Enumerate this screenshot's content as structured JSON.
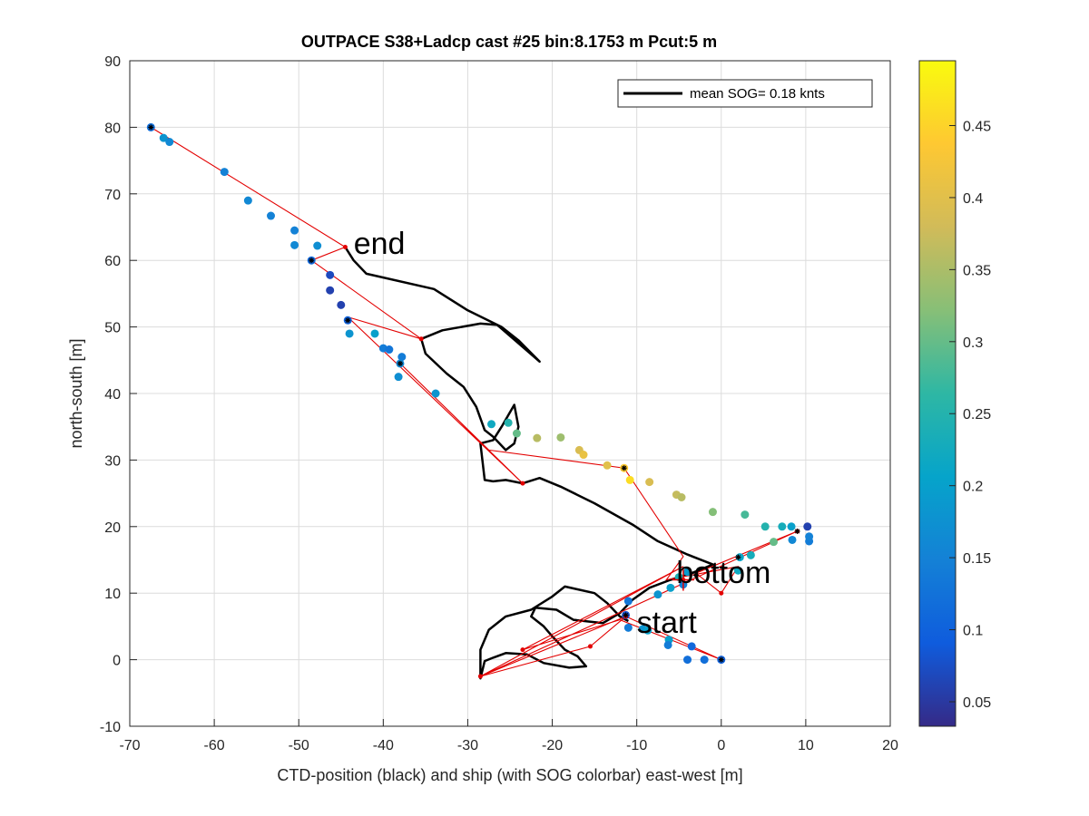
{
  "chart_data": {
    "type": "scatter",
    "title": "OUTPACE S38+Ladcp cast #25 bin:8.1753 m  Pcut:5 m",
    "xlabel": "CTD-position (black) and ship (with SOG colorbar) east-west [m]",
    "ylabel": "north-south [m]",
    "xlim": [
      -70,
      20
    ],
    "ylim": [
      -10,
      90
    ],
    "xticks": [
      -70,
      -60,
      -50,
      -40,
      -30,
      -20,
      -10,
      0,
      10,
      20
    ],
    "yticks": [
      -10,
      0,
      10,
      20,
      30,
      40,
      50,
      60,
      70,
      80,
      90
    ],
    "grid": true,
    "legend": {
      "position": "top-right",
      "entry": "mean SOG=  0.18 knts",
      "color": "#000000"
    },
    "colorbar": {
      "range": [
        0.033,
        0.495
      ],
      "ticks": [
        0.05,
        0.1,
        0.15,
        0.2,
        0.25,
        0.3,
        0.35,
        0.4,
        0.45
      ],
      "colormap": [
        "#352a87",
        "#0f5cdd",
        "#1481d6",
        "#06a4ca",
        "#2eb7a4",
        "#87bf77",
        "#d1bb59",
        "#fec832",
        "#f9fb0e"
      ]
    },
    "annotations": [
      {
        "text": "end",
        "x": -43.5,
        "y": 61
      },
      {
        "text": "bottom",
        "x": -5.3,
        "y": 11.5
      },
      {
        "text": "start",
        "x": -10,
        "y": 4
      }
    ],
    "ctd_path": [
      [
        -44.5,
        62
      ],
      [
        -43.5,
        60
      ],
      [
        -42,
        58
      ],
      [
        -34,
        55.7
      ],
      [
        -30,
        52.5
      ],
      [
        -26,
        50
      ],
      [
        -24,
        48
      ],
      [
        -21.5,
        44.8
      ],
      [
        -26.5,
        50.3
      ],
      [
        -28.5,
        50.5
      ],
      [
        -33,
        49.5
      ],
      [
        -35.5,
        48.2
      ],
      [
        -35,
        46
      ],
      [
        -32.5,
        43
      ],
      [
        -30.5,
        41
      ],
      [
        -29,
        38
      ],
      [
        -28,
        34.5
      ],
      [
        -27,
        33.5
      ],
      [
        -25.5,
        31.5
      ],
      [
        -24.5,
        32.5
      ],
      [
        -24,
        35
      ],
      [
        -24.5,
        38.3
      ],
      [
        -26,
        35
      ],
      [
        -27,
        33
      ],
      [
        -28.5,
        32.5
      ],
      [
        -28,
        27
      ],
      [
        -27,
        26.8
      ],
      [
        -25.5,
        27
      ],
      [
        -23.5,
        26.5
      ],
      [
        -21.5,
        27.3
      ],
      [
        -19,
        26
      ],
      [
        -15,
        23.5
      ],
      [
        -10.5,
        20.3
      ],
      [
        -7.5,
        17.8
      ],
      [
        -4,
        15.8
      ],
      [
        -1,
        14.3
      ],
      [
        -3.5,
        13
      ],
      [
        -6,
        12
      ],
      [
        -8.5,
        10.8
      ],
      [
        -10.5,
        9
      ],
      [
        -12,
        7
      ],
      [
        -14,
        5.5
      ],
      [
        -17.5,
        6
      ],
      [
        -19.5,
        7.5
      ],
      [
        -22,
        7.8
      ],
      [
        -22.5,
        6.5
      ],
      [
        -21,
        5
      ],
      [
        -20,
        3.5
      ],
      [
        -18.5,
        1.5
      ],
      [
        -17,
        0.5
      ],
      [
        -16,
        -1
      ],
      [
        -18,
        -1.2
      ],
      [
        -21,
        -0.5
      ],
      [
        -23,
        0.8
      ],
      [
        -25.5,
        1
      ],
      [
        -27,
        0.3
      ],
      [
        -28,
        -0.2
      ],
      [
        -28.5,
        -2.8
      ],
      [
        -28.5,
        1.5
      ],
      [
        -27.5,
        4.5
      ],
      [
        -25.5,
        6.5
      ],
      [
        -22.5,
        7.5
      ],
      [
        -20,
        9.5
      ],
      [
        -18.5,
        11
      ],
      [
        -15,
        10
      ],
      [
        -13.5,
        8.5
      ],
      [
        -12,
        6.5
      ],
      [
        -11,
        5.8
      ]
    ],
    "ship_points": [
      {
        "x": -67.5,
        "y": 80,
        "sog": 0.12
      },
      {
        "x": -66,
        "y": 78.4,
        "sog": 0.18
      },
      {
        "x": -65.3,
        "y": 77.8,
        "sog": 0.16
      },
      {
        "x": -58.8,
        "y": 73.3,
        "sog": 0.15
      },
      {
        "x": -56,
        "y": 69,
        "sog": 0.16
      },
      {
        "x": -53.3,
        "y": 66.7,
        "sog": 0.15
      },
      {
        "x": -50.5,
        "y": 64.5,
        "sog": 0.15
      },
      {
        "x": -50.5,
        "y": 62.3,
        "sog": 0.16
      },
      {
        "x": -47.8,
        "y": 62.2,
        "sog": 0.17
      },
      {
        "x": -48.5,
        "y": 60,
        "sog": 0.11
      },
      {
        "x": -46.3,
        "y": 57.8,
        "sog": 0.07
      },
      {
        "x": -46.3,
        "y": 55.5,
        "sog": 0.06
      },
      {
        "x": -45,
        "y": 53.3,
        "sog": 0.06
      },
      {
        "x": -44.2,
        "y": 51,
        "sog": 0.1
      },
      {
        "x": -44,
        "y": 49,
        "sog": 0.18
      },
      {
        "x": -41,
        "y": 49,
        "sog": 0.2
      },
      {
        "x": -40,
        "y": 46.8,
        "sog": 0.14
      },
      {
        "x": -39.3,
        "y": 46.6,
        "sog": 0.13
      },
      {
        "x": -37.8,
        "y": 45.5,
        "sog": 0.14
      },
      {
        "x": -38,
        "y": 44.5,
        "sog": 0.16
      },
      {
        "x": -38.2,
        "y": 42.5,
        "sog": 0.17
      },
      {
        "x": -33.8,
        "y": 40,
        "sog": 0.18
      },
      {
        "x": -27.2,
        "y": 35.4,
        "sog": 0.22
      },
      {
        "x": -25.2,
        "y": 35.6,
        "sog": 0.25
      },
      {
        "x": -24.2,
        "y": 34,
        "sog": 0.3
      },
      {
        "x": -21.8,
        "y": 33.3,
        "sog": 0.36
      },
      {
        "x": -19,
        "y": 33.4,
        "sog": 0.34
      },
      {
        "x": -16.8,
        "y": 31.5,
        "sog": 0.39
      },
      {
        "x": -16.3,
        "y": 30.8,
        "sog": 0.41
      },
      {
        "x": -13.5,
        "y": 29.2,
        "sog": 0.4
      },
      {
        "x": -11.5,
        "y": 28.8,
        "sog": 0.44
      },
      {
        "x": -10.8,
        "y": 27,
        "sog": 0.46
      },
      {
        "x": -8.5,
        "y": 26.7,
        "sog": 0.39
      },
      {
        "x": -5.3,
        "y": 24.8,
        "sog": 0.37
      },
      {
        "x": -4.7,
        "y": 24.4,
        "sog": 0.36
      },
      {
        "x": -1,
        "y": 22.2,
        "sog": 0.32
      },
      {
        "x": 2.8,
        "y": 21.8,
        "sog": 0.28
      },
      {
        "x": 6.2,
        "y": 17.7,
        "sog": 0.3
      },
      {
        "x": 5.2,
        "y": 20,
        "sog": 0.25
      },
      {
        "x": 7.2,
        "y": 20,
        "sog": 0.23
      },
      {
        "x": 8.3,
        "y": 20,
        "sog": 0.2
      },
      {
        "x": 8.4,
        "y": 18,
        "sog": 0.16
      },
      {
        "x": 10.2,
        "y": 20,
        "sog": 0.06
      },
      {
        "x": 10.4,
        "y": 17.8,
        "sog": 0.14
      },
      {
        "x": 10.4,
        "y": 18.5,
        "sog": 0.15
      },
      {
        "x": 3.5,
        "y": 15.7,
        "sog": 0.23
      },
      {
        "x": 2.2,
        "y": 15.4,
        "sog": 0.21
      },
      {
        "x": 2,
        "y": 13.4,
        "sog": 0.22
      },
      {
        "x": -4,
        "y": 13.2,
        "sog": 0.19
      },
      {
        "x": -5,
        "y": 12.4,
        "sog": 0.24
      },
      {
        "x": -4.5,
        "y": 11.3,
        "sog": 0.15
      },
      {
        "x": -6,
        "y": 10.8,
        "sog": 0.2
      },
      {
        "x": -7.5,
        "y": 9.8,
        "sog": 0.18
      },
      {
        "x": -11,
        "y": 8.8,
        "sog": 0.13
      },
      {
        "x": -11.3,
        "y": 6.7,
        "sog": 0.08
      },
      {
        "x": -11,
        "y": 4.8,
        "sog": 0.14
      },
      {
        "x": -9.3,
        "y": 4.6,
        "sog": 0.18
      },
      {
        "x": -8.7,
        "y": 4.4,
        "sog": 0.2
      },
      {
        "x": -6.2,
        "y": 3,
        "sog": 0.2
      },
      {
        "x": -6.3,
        "y": 2.2,
        "sog": 0.14
      },
      {
        "x": -3.5,
        "y": 2,
        "sog": 0.11
      },
      {
        "x": -4,
        "y": 0,
        "sog": 0.12
      },
      {
        "x": -2,
        "y": 0,
        "sog": 0.12
      },
      {
        "x": 0,
        "y": 0,
        "sog": 0.1
      }
    ],
    "red_path": [
      [
        -67.5,
        80
      ],
      [
        -44.5,
        62
      ],
      [
        -48.5,
        60
      ],
      [
        -35.5,
        48.2
      ],
      [
        -44.2,
        51.5
      ],
      [
        -23.5,
        26.5
      ],
      [
        -38,
        44.5
      ],
      [
        -27.5,
        31.5
      ],
      [
        -11.5,
        28.8
      ],
      [
        -4.5,
        15.5
      ],
      [
        -6.5,
        12
      ],
      [
        2,
        14
      ],
      [
        0,
        10
      ],
      [
        -3,
        13
      ],
      [
        9,
        19.3
      ],
      [
        -28.5,
        -2.5
      ],
      [
        -11.3,
        6.5
      ],
      [
        -15.5,
        2
      ],
      [
        -28.5,
        -2.5
      ],
      [
        -4.5,
        14
      ],
      [
        -23.5,
        1.5
      ],
      [
        -12,
        6
      ],
      [
        0,
        0
      ],
      [
        -11.3,
        6.5
      ]
    ],
    "red_markers": [
      [
        -44.5,
        62
      ],
      [
        -35.5,
        48.2
      ],
      [
        -23.5,
        26.5
      ],
      [
        -28.5,
        -2.5
      ],
      [
        -15.5,
        2
      ],
      [
        -23.5,
        1.5
      ],
      [
        0,
        10
      ],
      [
        -4.5,
        12
      ],
      [
        9,
        19.3
      ],
      [
        -11.3,
        6.5
      ]
    ],
    "black_markers": [
      [
        -67.5,
        80
      ],
      [
        -48.5,
        60
      ],
      [
        -44.2,
        51
      ],
      [
        -38,
        44.5
      ],
      [
        -11.5,
        28.8
      ],
      [
        9,
        19.3
      ],
      [
        2,
        15.4
      ],
      [
        -11.3,
        6.7
      ],
      [
        0,
        0
      ],
      [
        -3,
        12.7
      ]
    ],
    "bottom_marker": {
      "x": -4.5,
      "y": 12
    }
  }
}
